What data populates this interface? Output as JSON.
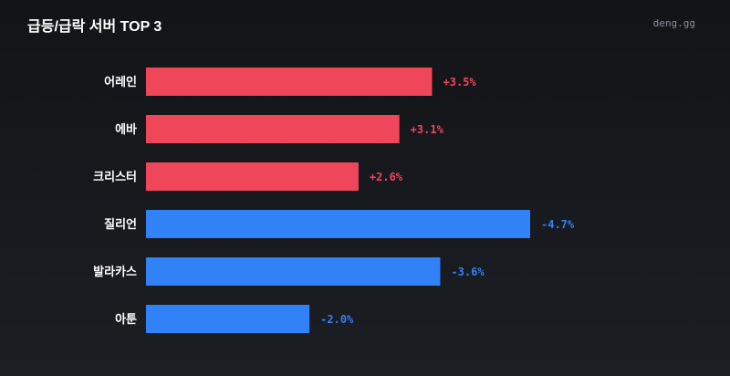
{
  "chart_data": {
    "type": "bar",
    "orientation": "horizontal",
    "title": "급등/급락 서버 TOP 3",
    "source": "deng.gg",
    "categories": [
      "어레인",
      "에바",
      "크리스터",
      "질리언",
      "발라카스",
      "아툰"
    ],
    "values": [
      3.5,
      3.1,
      2.6,
      -4.7,
      -3.6,
      -2.0
    ],
    "value_labels": [
      "+3.5%",
      "+3.1%",
      "+2.6%",
      "-4.7%",
      "-3.6%",
      "-2.0%"
    ],
    "colors": [
      "#f0465a",
      "#f0465a",
      "#f0465a",
      "#3182f6",
      "#3182f6",
      "#3182f6"
    ]
  }
}
